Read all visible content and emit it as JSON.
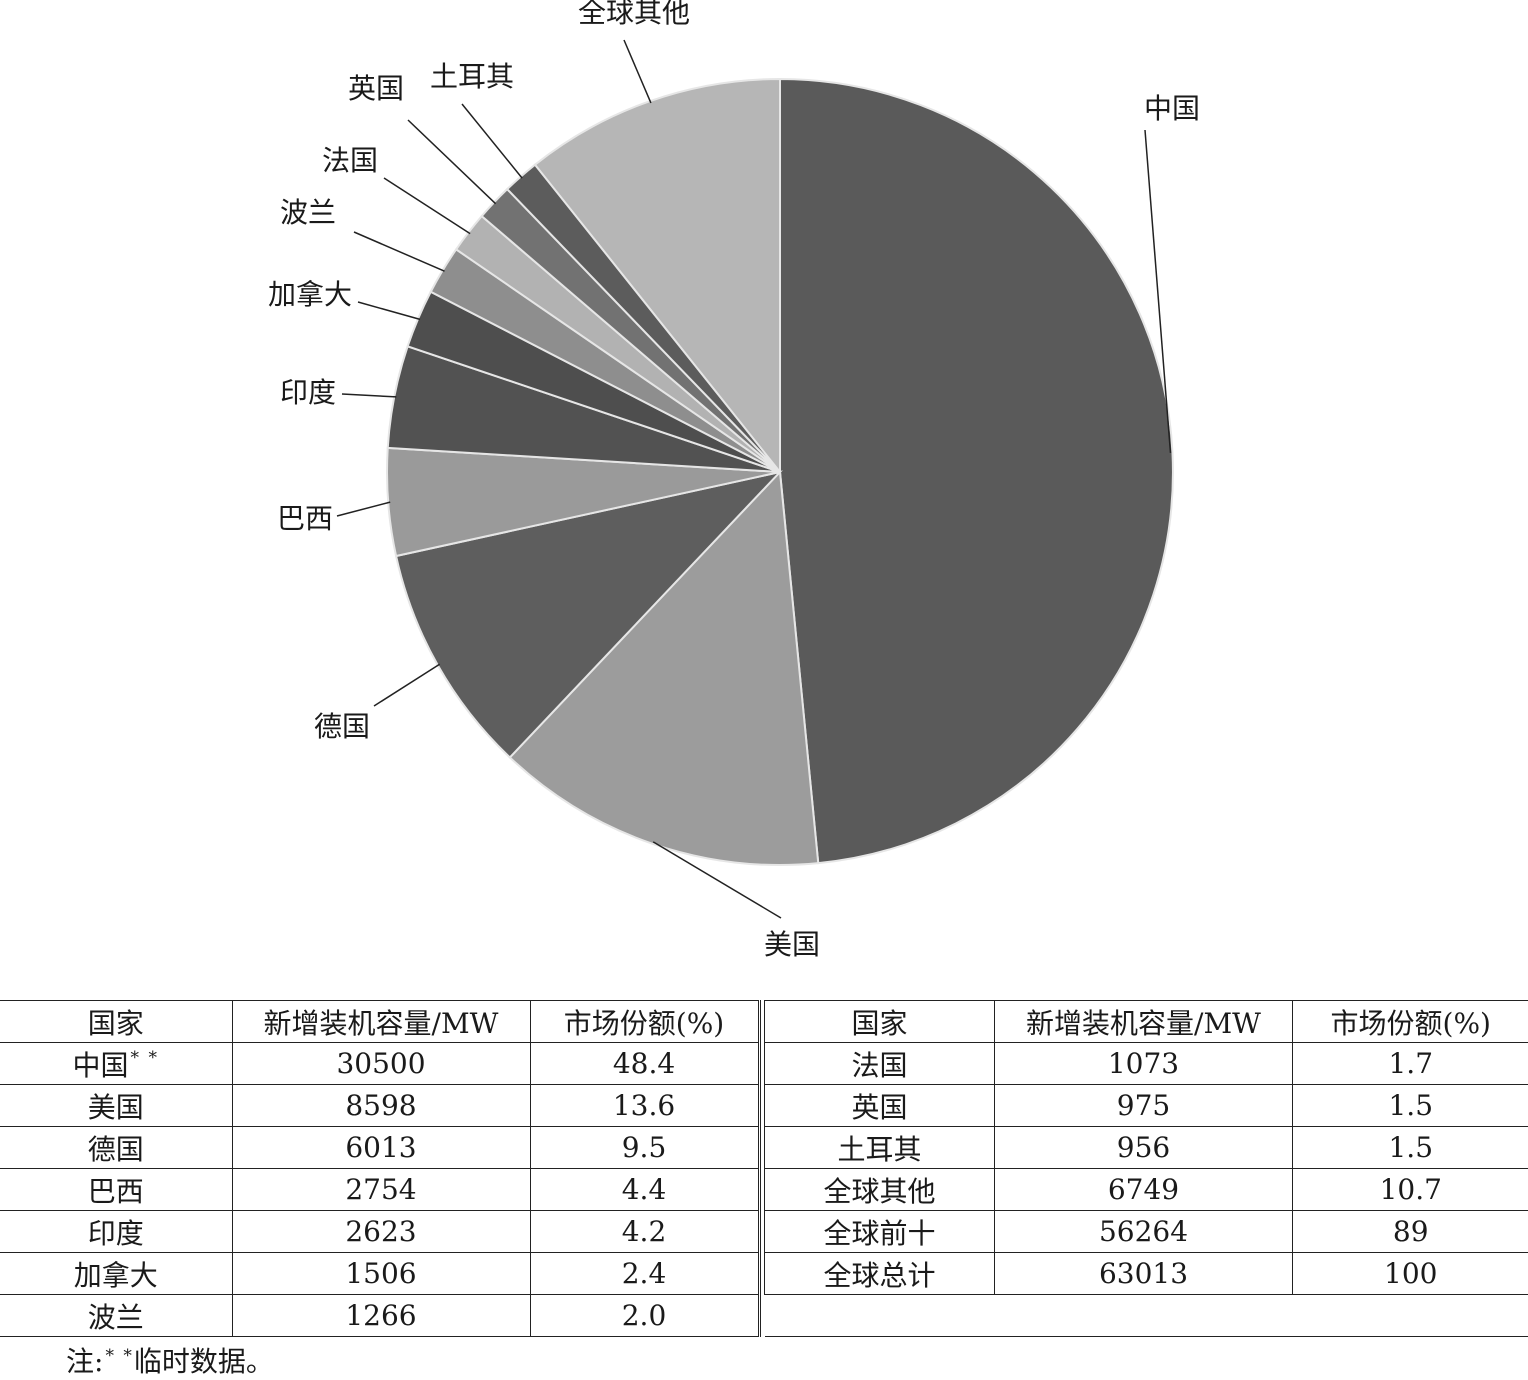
{
  "chart_data": {
    "type": "pie",
    "slices": [
      {
        "label": "中国",
        "value": 48.4,
        "color": "#5a5a5a"
      },
      {
        "label": "美国",
        "value": 13.6,
        "color": "#9c9c9c"
      },
      {
        "label": "德国",
        "value": 9.5,
        "color": "#5e5e5e"
      },
      {
        "label": "巴西",
        "value": 4.4,
        "color": "#9a9a9a"
      },
      {
        "label": "印度",
        "value": 4.2,
        "color": "#525252"
      },
      {
        "label": "加拿大",
        "value": 2.4,
        "color": "#4e4e4e"
      },
      {
        "label": "波兰",
        "value": 2.0,
        "color": "#8e8e8e"
      },
      {
        "label": "法国",
        "value": 1.7,
        "color": "#b2b2b2"
      },
      {
        "label": "英国",
        "value": 1.5,
        "color": "#727272"
      },
      {
        "label": "土耳其",
        "value": 1.5,
        "color": "#5c5c5c"
      },
      {
        "label": "全球其他",
        "value": 10.7,
        "color": "#b6b6b6"
      }
    ]
  },
  "table": {
    "headers": [
      "国家",
      "新增装机容量/MW",
      "市场份额(%)"
    ],
    "left_rows": [
      {
        "country": "中国",
        "mark": "* *",
        "capacity": "30500",
        "share": "48.4"
      },
      {
        "country": "美国",
        "mark": "",
        "capacity": "8598",
        "share": "13.6"
      },
      {
        "country": "德国",
        "mark": "",
        "capacity": "6013",
        "share": "9.5"
      },
      {
        "country": "巴西",
        "mark": "",
        "capacity": "2754",
        "share": "4.4"
      },
      {
        "country": "印度",
        "mark": "",
        "capacity": "2623",
        "share": "4.2"
      },
      {
        "country": "加拿大",
        "mark": "",
        "capacity": "1506",
        "share": "2.4"
      },
      {
        "country": "波兰",
        "mark": "",
        "capacity": "1266",
        "share": "2.0"
      }
    ],
    "right_rows": [
      {
        "country": "法国",
        "capacity": "1073",
        "share": "1.7"
      },
      {
        "country": "英国",
        "capacity": "975",
        "share": "1.5"
      },
      {
        "country": "土耳其",
        "capacity": "956",
        "share": "1.5"
      },
      {
        "country": "全球其他",
        "capacity": "6749",
        "share": "10.7"
      },
      {
        "country": "全球前十",
        "capacity": "56264",
        "share": "89"
      },
      {
        "country": "全球总计",
        "capacity": "63013",
        "share": "100"
      }
    ]
  },
  "footnote": {
    "prefix": "注:",
    "mark": "* *",
    "text": "临时数据。"
  }
}
